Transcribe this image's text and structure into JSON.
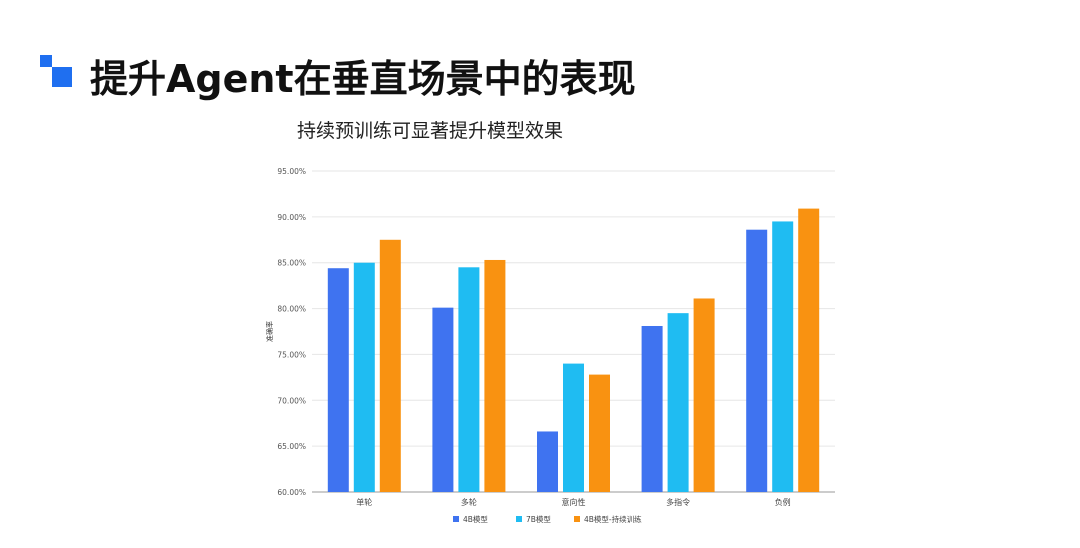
{
  "page": {
    "title": "提升Agent在垂直场景中的表现"
  },
  "chart_data": {
    "type": "bar",
    "title": "持续预训练可显著提升模型效果",
    "xlabel": "",
    "ylabel": "准确率",
    "ylim": [
      60,
      95
    ],
    "yticks": [
      "95.00%",
      "90.00%",
      "85.00%",
      "80.00%",
      "75.00%",
      "70.00%",
      "65.00%",
      "60.00%"
    ],
    "ytick_values": [
      95,
      90,
      85,
      80,
      75,
      70,
      65,
      60
    ],
    "grid": true,
    "legend_position": "bottom",
    "categories": [
      "单轮",
      "多轮",
      "意向性",
      "多指令",
      "负例"
    ],
    "series": [
      {
        "name": "4B模型",
        "color": "#3f73f0",
        "values": [
          84.4,
          80.1,
          66.6,
          78.1,
          88.6
        ]
      },
      {
        "name": "7B模型",
        "color": "#1fbcf2",
        "values": [
          85.0,
          84.5,
          74.0,
          79.5,
          89.5
        ]
      },
      {
        "name": "4B模型-持续训练",
        "color": "#f99211",
        "values": [
          87.5,
          85.3,
          72.8,
          81.1,
          90.9
        ]
      }
    ]
  }
}
